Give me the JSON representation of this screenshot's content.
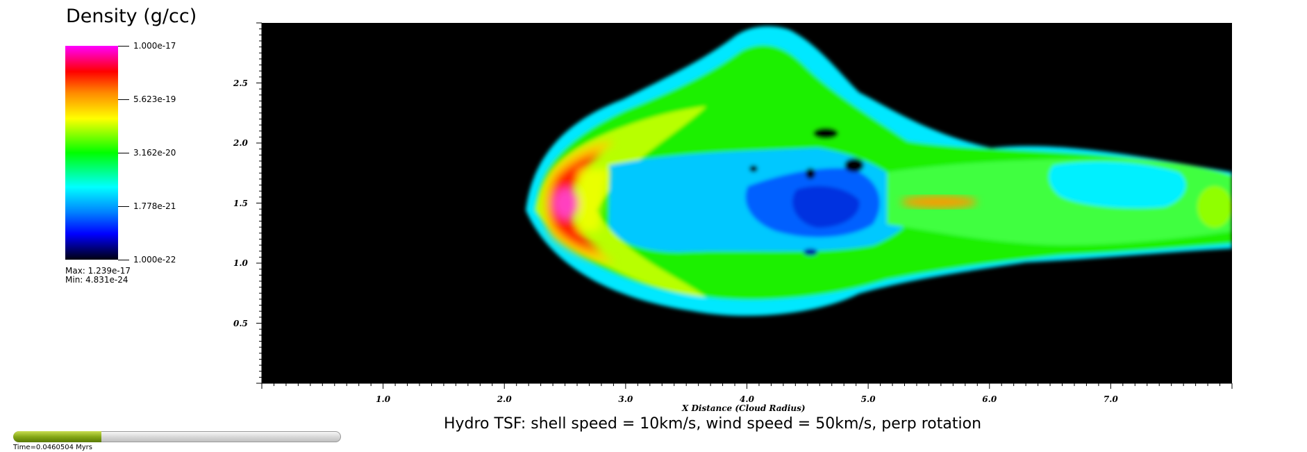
{
  "legend": {
    "title": "Density (g/cc)",
    "tick_labels": [
      "1.000e-17",
      "5.623e-19",
      "3.162e-20",
      "1.778e-21",
      "1.000e-22"
    ],
    "max_label": "Max:  1.239e-17",
    "min_label": "Min:  4.831e-24",
    "colormap": [
      "#ff00ff",
      "#ff0000",
      "#ffa000",
      "#ffff00",
      "#00ff00",
      "#00ffff",
      "#0080ff",
      "#0000ff",
      "#000000"
    ]
  },
  "chart_data": {
    "type": "heatmap",
    "title": "",
    "subtitle": "Hydro TSF: shell speed = 10km/s, wind speed = 50km/s, perp rotation",
    "xlabel": "X Distance (Cloud Radius)",
    "ylabel": "",
    "xlim": [
      0,
      8.0
    ],
    "ylim": [
      0,
      3.0
    ],
    "xticks": [
      "1.0",
      "2.0",
      "3.0",
      "4.0",
      "5.0",
      "6.0",
      "7.0"
    ],
    "yticks": [
      "0.5",
      "1.0",
      "1.5",
      "2.0",
      "2.5"
    ],
    "colorbar_scale": "log",
    "colorbar_range": [
      1e-22,
      1e-17
    ],
    "background_color": "#000000"
  },
  "progress": {
    "fraction": 0.27,
    "label": "Time=0.0460504 Myrs"
  }
}
